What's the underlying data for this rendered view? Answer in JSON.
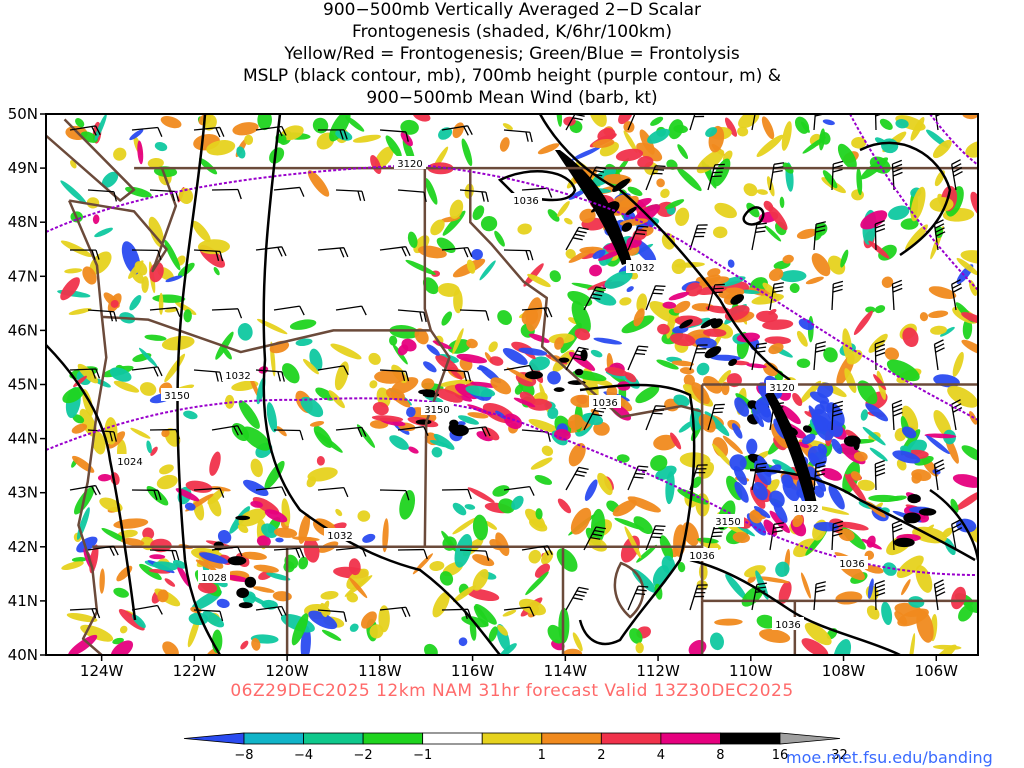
{
  "title_lines": [
    "900−500mb Vertically Averaged 2−D Scalar",
    "Frontogenesis (shaded, K/6hr/100km)",
    "Yellow/Red = Frontogenesis;  Green/Blue = Frontolysis",
    "MSLP (black contour, mb), 700mb height (purple contour, m) &",
    "900−500mb Mean Wind (barb, kt)"
  ],
  "map": {
    "lat_labels": [
      "50N",
      "49N",
      "48N",
      "47N",
      "46N",
      "45N",
      "44N",
      "43N",
      "42N",
      "41N",
      "40N"
    ],
    "lon_labels": [
      "124W",
      "122W",
      "120W",
      "118W",
      "116W",
      "114W",
      "112W",
      "110W",
      "108W",
      "106W"
    ],
    "lat_range": [
      40,
      50
    ],
    "lon_range": [
      -125.2,
      -105.1
    ],
    "mslp_labels": [
      "1036",
      "1032",
      "1032",
      "1024",
      "1032",
      "1028",
      "1036",
      "1032",
      "1036",
      "1036",
      "1036"
    ],
    "height_labels": [
      "3120",
      "3150",
      "3150",
      "3120",
      "3150"
    ],
    "colors": {
      "frontolysis_strong": "#2a4bf0",
      "frontolysis_mid": "#0fc8a0",
      "frontolysis_weak": "#1fd41f",
      "frontogenesis_weak": "#e6d21e",
      "frontogenesis_mid": "#f08a1e",
      "frontogenesis_strong": "#f0324b",
      "frontogenesis_vstrong": "#e6007e",
      "frontogenesis_extreme": "#000000",
      "mslp_contour": "#000000",
      "height_contour": "#9900cc",
      "borders": "#6b4a3a",
      "barbs": "#000000"
    }
  },
  "colorbar": {
    "ticks": [
      "−8",
      "−4",
      "−2",
      "−1",
      "1",
      "2",
      "4",
      "8",
      "16",
      "32"
    ],
    "colors": [
      "#2a4bf0",
      "#11b4c8",
      "#0fc88c",
      "#1fd41f",
      "#ffffff",
      "#e6d21e",
      "#f08a1e",
      "#f0324b",
      "#e6007e",
      "#000000",
      "#a0a0a0"
    ]
  },
  "caption": "06Z29DEC2025 12km NAM 31hr forecast Valid 13Z30DEC2025",
  "website": "moe.met.fsu.edu/banding"
}
